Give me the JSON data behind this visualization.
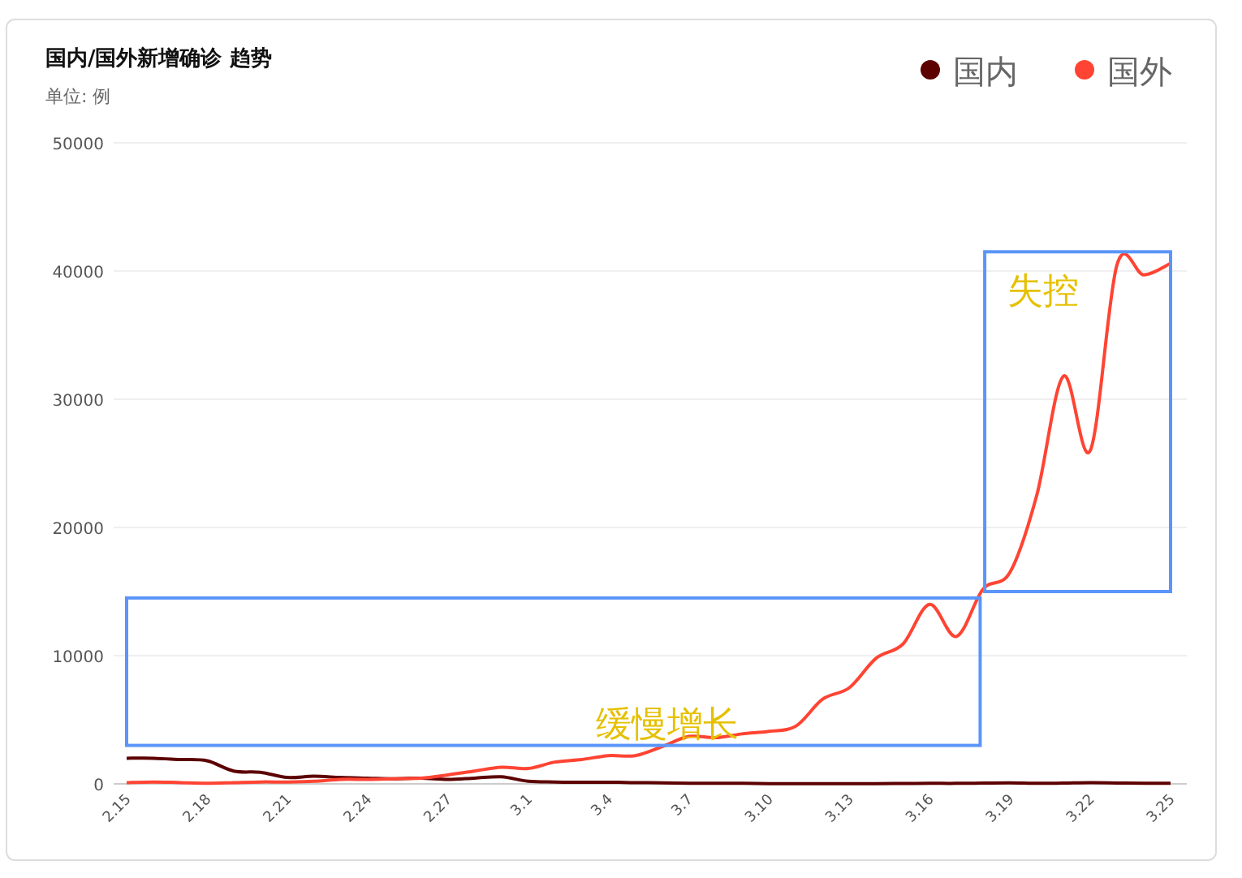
{
  "chart_data": {
    "type": "line",
    "title": "国内/国外新增确诊 趋势",
    "subtitle": "单位: 例",
    "categories": [
      "2.15",
      null,
      null,
      "2.18",
      null,
      null,
      "2.21",
      null,
      null,
      "2.24",
      null,
      null,
      "2.27",
      null,
      null,
      "3.1",
      null,
      null,
      "3.4",
      null,
      null,
      "3.7",
      null,
      null,
      "3.10",
      null,
      null,
      "3.13",
      null,
      null,
      "3.16",
      null,
      null,
      "3.19",
      null,
      null,
      "3.22",
      null,
      null,
      "3.25"
    ],
    "series": [
      {
        "name": "国内",
        "color": "#5c0000",
        "values": [
          2000,
          2000,
          1900,
          1800,
          1000,
          900,
          500,
          600,
          500,
          450,
          400,
          450,
          350,
          450,
          550,
          200,
          150,
          120,
          130,
          100,
          80,
          50,
          45,
          40,
          20,
          10,
          20,
          15,
          20,
          30,
          40,
          40,
          60,
          80,
          40,
          60,
          90,
          70,
          50,
          40
        ]
      },
      {
        "name": "国外",
        "color": "#ff4433",
        "values": [
          100,
          150,
          100,
          50,
          100,
          150,
          150,
          200,
          350,
          350,
          400,
          450,
          700,
          1000,
          1300,
          1200,
          1700,
          1900,
          2200,
          2200,
          2900,
          3700,
          3600,
          3900,
          4100,
          4500,
          6600,
          7500,
          9800,
          10900,
          14000,
          11500,
          15200,
          16500,
          22500,
          31800,
          26000,
          40500,
          39700,
          40600
        ]
      }
    ],
    "ylim": [
      0,
      50000
    ],
    "yticks": [
      0,
      10000,
      20000,
      30000,
      40000,
      50000
    ],
    "grid": "y",
    "legend": "top right",
    "marker": "none",
    "line_style": "solid",
    "annotations": [
      "缓慢增长",
      "失控"
    ]
  }
}
